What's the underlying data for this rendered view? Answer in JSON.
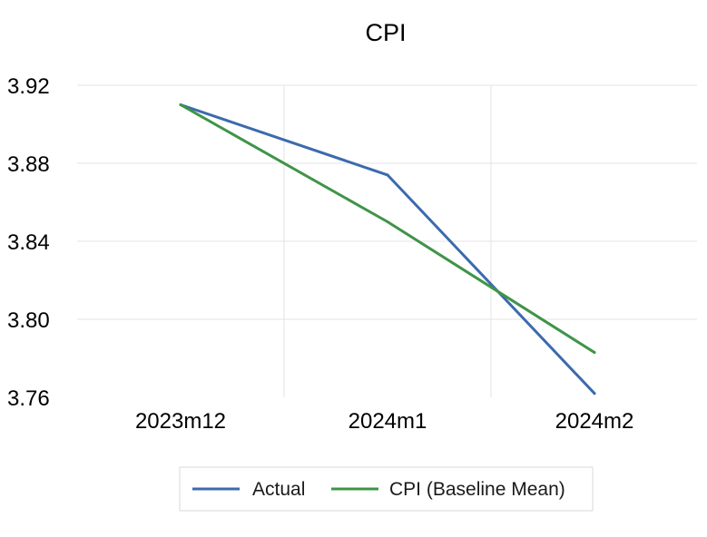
{
  "chart_data": {
    "type": "line",
    "title": "CPI",
    "xlabel": "",
    "ylabel": "",
    "categories": [
      "2023m12",
      "2024m1",
      "2024m2"
    ],
    "ylim": [
      3.76,
      3.92
    ],
    "yticks": [
      "3.92",
      "3.88",
      "3.84",
      "3.80",
      "3.76"
    ],
    "ytick_values": [
      3.92,
      3.88,
      3.84,
      3.8,
      3.76
    ],
    "grid": true,
    "legend_position": "bottom",
    "series": [
      {
        "name": "Actual",
        "values": [
          3.91,
          3.874,
          3.762
        ],
        "color": "#3c6aad"
      },
      {
        "name": "CPI (Baseline Mean)",
        "values": [
          3.91,
          3.85,
          3.783
        ],
        "color": "#3f9447"
      }
    ],
    "gridline_color": "#e3e3e3",
    "legend_border_color": "#d9d9d9"
  }
}
